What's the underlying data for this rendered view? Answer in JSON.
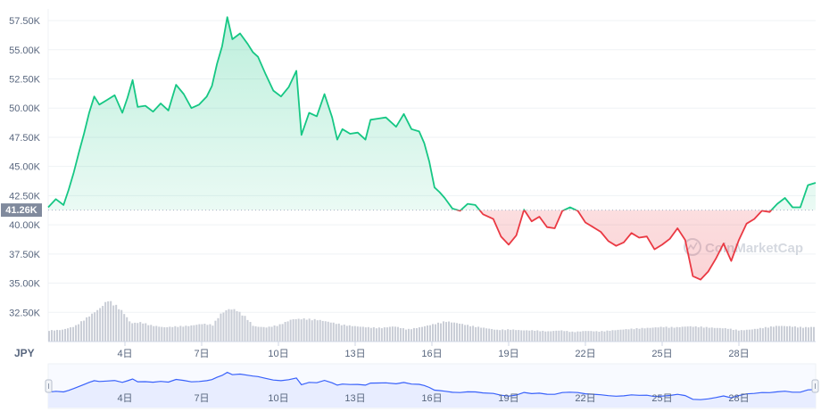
{
  "currency_label": "JPY",
  "reference_label": "41.26K",
  "watermark": "CoinMarketCap",
  "colors": {
    "up_line": "#16c784",
    "down_line": "#ea3943",
    "up_fill": "#16c784",
    "down_fill": "#ea3943",
    "volume": "#c9cdd6",
    "nav_line": "#3861fb",
    "nav_fill": "#e8edff",
    "reference_badge": "#808a9d",
    "grid": "#eff2f5",
    "axis_text": "#58667e"
  },
  "chart_data": {
    "type": "area",
    "ylim": [
      30000,
      58500
    ],
    "y_ticks": [
      32500,
      35000,
      37500,
      40000,
      42500,
      45000,
      47500,
      50000,
      52500,
      55000,
      57500
    ],
    "y_tick_labels": [
      "32.50K",
      "35.00K",
      "37.50K",
      "40.00K",
      "42.50K",
      "45.00K",
      "47.50K",
      "50.00K",
      "52.50K",
      "55.00K",
      "57.50K"
    ],
    "x_range": [
      1,
      31
    ],
    "x_ticks": [
      4,
      7,
      10,
      13,
      16,
      19,
      22,
      25,
      28
    ],
    "x_tick_labels": [
      "4日",
      "7日",
      "10日",
      "13日",
      "16日",
      "19日",
      "22日",
      "25日",
      "28日"
    ],
    "reference_value": 41260,
    "price": [
      [
        1.0,
        41500
      ],
      [
        1.3,
        42200
      ],
      [
        1.6,
        41700
      ],
      [
        1.8,
        43000
      ],
      [
        2.0,
        44500
      ],
      [
        2.2,
        46200
      ],
      [
        2.4,
        47800
      ],
      [
        2.6,
        49600
      ],
      [
        2.8,
        51000
      ],
      [
        3.0,
        50300
      ],
      [
        3.3,
        50700
      ],
      [
        3.6,
        51100
      ],
      [
        3.9,
        49600
      ],
      [
        4.1,
        50900
      ],
      [
        4.3,
        52400
      ],
      [
        4.5,
        50100
      ],
      [
        4.8,
        50200
      ],
      [
        5.1,
        49700
      ],
      [
        5.4,
        50400
      ],
      [
        5.7,
        49800
      ],
      [
        6.0,
        52000
      ],
      [
        6.3,
        51200
      ],
      [
        6.6,
        50000
      ],
      [
        6.9,
        50300
      ],
      [
        7.2,
        51000
      ],
      [
        7.4,
        51900
      ],
      [
        7.6,
        53800
      ],
      [
        7.8,
        55300
      ],
      [
        8.0,
        57800
      ],
      [
        8.2,
        55900
      ],
      [
        8.5,
        56400
      ],
      [
        8.8,
        55500
      ],
      [
        9.0,
        54800
      ],
      [
        9.2,
        54400
      ],
      [
        9.5,
        52900
      ],
      [
        9.8,
        51500
      ],
      [
        10.1,
        51000
      ],
      [
        10.4,
        51800
      ],
      [
        10.7,
        53200
      ],
      [
        10.9,
        47700
      ],
      [
        11.2,
        49600
      ],
      [
        11.5,
        49300
      ],
      [
        11.8,
        51200
      ],
      [
        12.1,
        49200
      ],
      [
        12.3,
        47300
      ],
      [
        12.5,
        48200
      ],
      [
        12.8,
        47800
      ],
      [
        13.1,
        47900
      ],
      [
        13.4,
        47300
      ],
      [
        13.6,
        49000
      ],
      [
        13.9,
        49100
      ],
      [
        14.2,
        49200
      ],
      [
        14.6,
        48400
      ],
      [
        14.9,
        49500
      ],
      [
        15.2,
        48200
      ],
      [
        15.5,
        48000
      ],
      [
        15.7,
        47000
      ],
      [
        15.9,
        45400
      ],
      [
        16.1,
        43200
      ],
      [
        16.3,
        42800
      ],
      [
        16.5,
        42300
      ],
      [
        16.8,
        41400
      ],
      [
        17.1,
        41200
      ],
      [
        17.4,
        41800
      ],
      [
        17.7,
        41700
      ],
      [
        18.0,
        40900
      ],
      [
        18.4,
        40500
      ],
      [
        18.7,
        39000
      ],
      [
        19.0,
        38300
      ],
      [
        19.3,
        39100
      ],
      [
        19.6,
        41300
      ],
      [
        19.9,
        40300
      ],
      [
        20.2,
        40700
      ],
      [
        20.5,
        39800
      ],
      [
        20.8,
        39700
      ],
      [
        21.1,
        41200
      ],
      [
        21.4,
        41500
      ],
      [
        21.7,
        41200
      ],
      [
        22.0,
        40200
      ],
      [
        22.3,
        39800
      ],
      [
        22.6,
        39400
      ],
      [
        22.9,
        38600
      ],
      [
        23.2,
        38200
      ],
      [
        23.5,
        38500
      ],
      [
        23.8,
        39300
      ],
      [
        24.1,
        38900
      ],
      [
        24.4,
        39000
      ],
      [
        24.7,
        37900
      ],
      [
        25.0,
        38300
      ],
      [
        25.3,
        38800
      ],
      [
        25.6,
        39700
      ],
      [
        25.9,
        38700
      ],
      [
        26.2,
        35600
      ],
      [
        26.5,
        35300
      ],
      [
        26.8,
        36000
      ],
      [
        27.1,
        37100
      ],
      [
        27.4,
        38400
      ],
      [
        27.7,
        36900
      ],
      [
        28.0,
        38700
      ],
      [
        28.3,
        40100
      ],
      [
        28.6,
        40500
      ],
      [
        28.9,
        41200
      ],
      [
        29.2,
        41100
      ],
      [
        29.5,
        41800
      ],
      [
        29.8,
        42300
      ],
      [
        30.1,
        41500
      ],
      [
        30.4,
        41500
      ],
      [
        30.7,
        43400
      ],
      [
        31.0,
        43600
      ]
    ],
    "volume_relative": [
      [
        1.0,
        0.22
      ],
      [
        1.5,
        0.23
      ],
      [
        2.0,
        0.3
      ],
      [
        2.5,
        0.48
      ],
      [
        3.0,
        0.66
      ],
      [
        3.3,
        0.82
      ],
      [
        3.6,
        0.72
      ],
      [
        3.9,
        0.58
      ],
      [
        4.2,
        0.36
      ],
      [
        4.6,
        0.38
      ],
      [
        5.0,
        0.32
      ],
      [
        5.5,
        0.28
      ],
      [
        6.0,
        0.3
      ],
      [
        6.5,
        0.31
      ],
      [
        7.0,
        0.35
      ],
      [
        7.4,
        0.33
      ],
      [
        7.7,
        0.54
      ],
      [
        8.0,
        0.64
      ],
      [
        8.3,
        0.63
      ],
      [
        8.7,
        0.48
      ],
      [
        9.0,
        0.3
      ],
      [
        9.5,
        0.28
      ],
      [
        10.0,
        0.33
      ],
      [
        10.5,
        0.44
      ],
      [
        11.0,
        0.45
      ],
      [
        11.5,
        0.43
      ],
      [
        12.0,
        0.38
      ],
      [
        12.5,
        0.33
      ],
      [
        13.0,
        0.3
      ],
      [
        13.5,
        0.28
      ],
      [
        14.0,
        0.27
      ],
      [
        14.5,
        0.3
      ],
      [
        15.0,
        0.24
      ],
      [
        15.5,
        0.28
      ],
      [
        16.0,
        0.34
      ],
      [
        16.5,
        0.4
      ],
      [
        17.0,
        0.36
      ],
      [
        17.5,
        0.31
      ],
      [
        18.0,
        0.27
      ],
      [
        18.5,
        0.23
      ],
      [
        19.0,
        0.24
      ],
      [
        19.5,
        0.22
      ],
      [
        20.0,
        0.22
      ],
      [
        20.5,
        0.2
      ],
      [
        21.0,
        0.22
      ],
      [
        21.5,
        0.19
      ],
      [
        22.0,
        0.21
      ],
      [
        22.5,
        0.2
      ],
      [
        23.0,
        0.22
      ],
      [
        23.5,
        0.24
      ],
      [
        24.0,
        0.26
      ],
      [
        24.5,
        0.27
      ],
      [
        25.0,
        0.29
      ],
      [
        25.5,
        0.28
      ],
      [
        26.0,
        0.3
      ],
      [
        26.5,
        0.29
      ],
      [
        27.0,
        0.27
      ],
      [
        27.5,
        0.26
      ],
      [
        28.0,
        0.22
      ],
      [
        28.5,
        0.24
      ],
      [
        29.0,
        0.28
      ],
      [
        29.5,
        0.31
      ],
      [
        30.0,
        0.3
      ],
      [
        30.5,
        0.28
      ],
      [
        31.0,
        0.29
      ]
    ]
  }
}
